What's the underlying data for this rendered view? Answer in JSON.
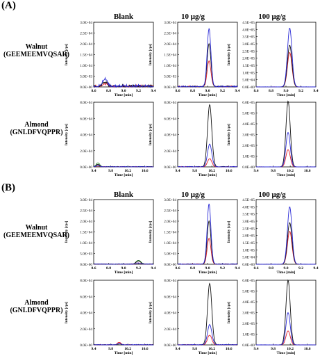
{
  "panels": [
    {
      "letter": "(A)"
    },
    {
      "letter": "(B)"
    }
  ],
  "columns": [
    "Blank",
    "10 μg/g",
    "100 μg/g"
  ],
  "rows": [
    {
      "name": "Walnut",
      "peptide": "(GEEMEEMVQSAR)"
    },
    {
      "name": "Almond",
      "peptide": "(GNLDFVQPPR)"
    }
  ],
  "ylabel": "Intensity [cps]",
  "xlabel": "Time [min]",
  "colors": {
    "blue": "#2a2ad6",
    "black": "#111111",
    "red": "#e0202a",
    "green": "#2d8a2d"
  },
  "chart_data": [
    {
      "panel": "A",
      "row": "Walnut",
      "col": "Blank",
      "type": "line",
      "x_ticks": [
        "8.6",
        "8.8",
        "9.0",
        "9.2",
        "9.4"
      ],
      "xlim": [
        8.6,
        9.4
      ],
      "y_ticks": [
        "0.0E+00",
        "5.0E+03",
        "1.0E+04",
        "1.5E+04",
        "2.0E+04",
        "2.5E+04",
        "3.0E+04"
      ],
      "ylim": [
        0,
        30000
      ],
      "peak_center": 8.75,
      "peak_width": 0.03,
      "peaks": {
        "blue": 3500,
        "black": 2000,
        "red": 1000
      },
      "noise": "high"
    },
    {
      "panel": "A",
      "row": "Walnut",
      "col": "10 μg/g",
      "type": "line",
      "x_ticks": [
        "8.6",
        "8.8",
        "9.0",
        "9.2",
        "9.4"
      ],
      "xlim": [
        8.6,
        9.4
      ],
      "y_ticks": [
        "0.0E+00",
        "5.0E+03",
        "1.0E+04",
        "1.5E+04",
        "2.0E+04",
        "2.5E+04",
        "3.0E+04"
      ],
      "ylim": [
        0,
        30000
      ],
      "peak_center": 9.02,
      "peak_width": 0.025,
      "peaks": {
        "blue": 27000,
        "black": 20000,
        "red": 12000
      },
      "noise": "medium"
    },
    {
      "panel": "A",
      "row": "Walnut",
      "col": "100 μg/g",
      "type": "line",
      "x_ticks": [
        "8.6",
        "8.8",
        "9.0",
        "9.2",
        "9.4"
      ],
      "xlim": [
        8.6,
        9.4
      ],
      "y_ticks": [
        "0.0E+00",
        "5.0E+04",
        "1.0E+05",
        "1.5E+05",
        "2.0E+05",
        "2.5E+05",
        "3.0E+05",
        "3.5E+05",
        "4.0E+05",
        "4.5E+05"
      ],
      "ylim": [
        0,
        450000
      ],
      "peak_center": 9.05,
      "peak_width": 0.03,
      "peaks": {
        "blue": 410000,
        "black": 290000,
        "red": 240000
      },
      "noise": "none"
    },
    {
      "panel": "A",
      "row": "Almond",
      "col": "Blank",
      "type": "line",
      "x_ticks": [
        "9.4",
        "9.8",
        "10.2",
        "10.6"
      ],
      "xlim": [
        9.4,
        10.8
      ],
      "y_ticks": [
        "0.0E+00",
        "2.0E+04",
        "4.0E+04",
        "6.0E+04",
        "8.0E+04"
      ],
      "ylim": [
        0,
        80000
      ],
      "peak_center": 9.5,
      "peak_width": 0.04,
      "peaks": {
        "blue": 1500,
        "black": 3000,
        "red": 1000,
        "green": 5000
      },
      "noise": "low"
    },
    {
      "panel": "A",
      "row": "Almond",
      "col": "10 μg/g",
      "type": "line",
      "x_ticks": [
        "9.4",
        "9.8",
        "10.2",
        "10.6"
      ],
      "xlim": [
        9.4,
        10.8
      ],
      "y_ticks": [
        "0.0E+00",
        "2.0E+04",
        "4.0E+04",
        "6.0E+04",
        "8.0E+04"
      ],
      "ylim": [
        0,
        80000
      ],
      "peak_center": 10.15,
      "peak_width": 0.05,
      "peaks": {
        "blue": 28000,
        "black": 77000,
        "red": 10000
      },
      "noise": "low"
    },
    {
      "panel": "A",
      "row": "Almond",
      "col": "100 μg/g",
      "type": "line",
      "x_ticks": [
        "9.4",
        "9.8",
        "10.2",
        "10.6"
      ],
      "xlim": [
        9.4,
        10.8
      ],
      "y_ticks": [
        "0.0E+00",
        "1.0E+05",
        "2.0E+05",
        "3.0E+05",
        "4.0E+05",
        "5.0E+05",
        "6.0E+05"
      ],
      "ylim": [
        0,
        600000
      ],
      "peak_center": 10.15,
      "peak_width": 0.05,
      "peaks": {
        "blue": 320000,
        "black": 610000,
        "red": 160000
      },
      "noise": "none"
    },
    {
      "panel": "B",
      "row": "Walnut",
      "col": "Blank",
      "type": "line",
      "x_ticks": [
        "8.6",
        "8.8",
        "9.0",
        "9.2",
        "9.4"
      ],
      "xlim": [
        8.6,
        9.4
      ],
      "y_ticks": [
        "0.0E+00",
        "5.0E+03",
        "1.0E+04",
        "1.5E+04",
        "2.0E+04",
        "2.5E+04",
        "3.0E+04"
      ],
      "ylim": [
        0,
        30000
      ],
      "peak_center": 9.2,
      "peak_width": 0.03,
      "peaks": {
        "blue": 500,
        "black": 1500,
        "red": 500,
        "green": 1800
      },
      "noise": "low"
    },
    {
      "panel": "B",
      "row": "Walnut",
      "col": "10 μg/g",
      "type": "line",
      "x_ticks": [
        "8.6",
        "8.8",
        "9.0",
        "9.2",
        "9.4"
      ],
      "xlim": [
        8.6,
        9.4
      ],
      "y_ticks": [
        "0.0E+00",
        "5.0E+03",
        "1.0E+04",
        "1.5E+04",
        "2.0E+04",
        "2.5E+04",
        "3.0E+04"
      ],
      "ylim": [
        0,
        30000
      ],
      "peak_center": 9.02,
      "peak_width": 0.025,
      "peaks": {
        "blue": 28000,
        "black": 20000,
        "red": 12000
      },
      "noise": "low"
    },
    {
      "panel": "B",
      "row": "Walnut",
      "col": "100 μg/g",
      "type": "line",
      "x_ticks": [
        "8.6",
        "8.8",
        "9.0",
        "9.2",
        "9.4"
      ],
      "xlim": [
        8.6,
        9.4
      ],
      "y_ticks": [
        "0.0E+00",
        "5.0E+04",
        "1.0E+05",
        "1.5E+05",
        "2.0E+05",
        "2.5E+05",
        "3.0E+05",
        "3.5E+05",
        "4.0E+05",
        "4.5E+05"
      ],
      "ylim": [
        0,
        450000
      ],
      "peak_center": 9.05,
      "peak_width": 0.03,
      "peaks": {
        "blue": 400000,
        "black": 290000,
        "red": 230000
      },
      "noise": "none"
    },
    {
      "panel": "B",
      "row": "Almond",
      "col": "Blank",
      "type": "line",
      "x_ticks": [
        "9.4",
        "9.8",
        "10.2",
        "10.6"
      ],
      "xlim": [
        9.4,
        10.8
      ],
      "y_ticks": [
        "0.0E+00",
        "2.0E+04",
        "4.0E+04",
        "6.0E+04",
        "8.0E+04"
      ],
      "ylim": [
        0,
        80000
      ],
      "peak_center": 10.0,
      "peak_width": 0.04,
      "peaks": {
        "blue": 1500,
        "black": 1000,
        "red": 3000
      },
      "noise": "low"
    },
    {
      "panel": "B",
      "row": "Almond",
      "col": "10 μg/g",
      "type": "line",
      "x_ticks": [
        "9.4",
        "9.8",
        "10.2",
        "10.6"
      ],
      "xlim": [
        9.4,
        10.8
      ],
      "y_ticks": [
        "0.0E+00",
        "2.0E+04",
        "4.0E+04",
        "6.0E+04",
        "8.0E+04"
      ],
      "ylim": [
        0,
        80000
      ],
      "peak_center": 10.15,
      "peak_width": 0.05,
      "peaks": {
        "blue": 25000,
        "black": 76000,
        "red": 12000
      },
      "noise": "low"
    },
    {
      "panel": "B",
      "row": "Almond",
      "col": "100 μg/g",
      "type": "line",
      "x_ticks": [
        "9.4",
        "9.8",
        "10.2",
        "10.6"
      ],
      "xlim": [
        9.4,
        10.8
      ],
      "y_ticks": [
        "0.0E+00",
        "1.0E+05",
        "2.0E+05",
        "3.0E+05",
        "4.0E+05",
        "5.0E+05",
        "6.0E+05"
      ],
      "ylim": [
        0,
        600000
      ],
      "peak_center": 10.15,
      "peak_width": 0.05,
      "peaks": {
        "blue": 300000,
        "black": 600000,
        "red": 130000
      },
      "noise": "none"
    }
  ]
}
